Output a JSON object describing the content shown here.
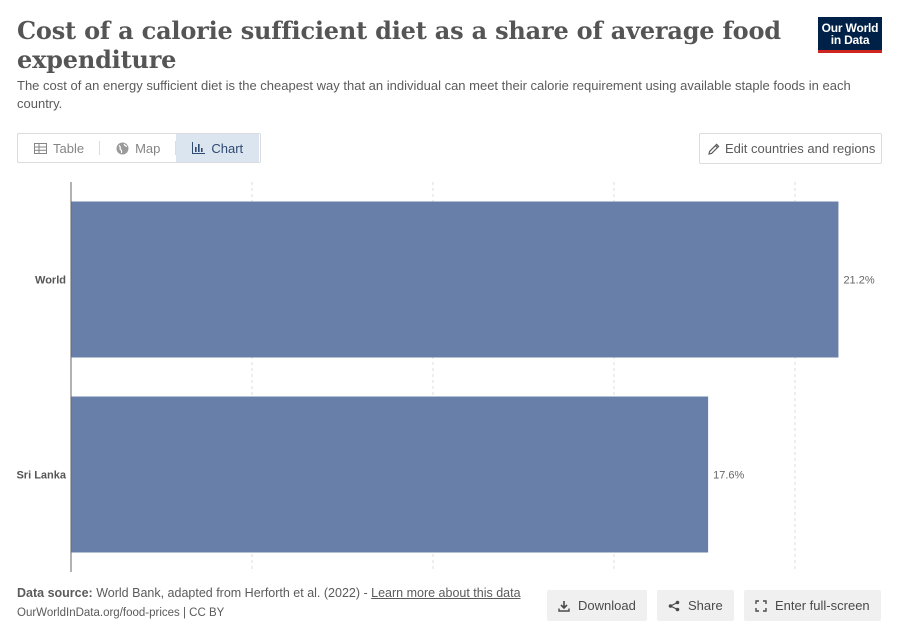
{
  "header": {
    "title": "Cost of a calorie sufficient diet as a share of average food expenditure",
    "subtitle": "The cost of an energy sufficient diet is the cheapest way that an individual can meet their calorie requirement using available staple foods in each country."
  },
  "logo": {
    "line1": "Our World",
    "line2": "in Data"
  },
  "tabs": [
    {
      "label": "Table",
      "icon": "table-icon",
      "active": false
    },
    {
      "label": "Map",
      "icon": "globe-icon",
      "active": false
    },
    {
      "label": "Chart",
      "icon": "chart-icon",
      "active": true
    }
  ],
  "edit_button": {
    "label": "Edit countries and regions",
    "icon": "pencil-icon"
  },
  "colors": {
    "bar": "#6880a9",
    "grid": "#dddddd",
    "axis": "#666666",
    "active_tab": "#dbe5f0",
    "logo_bg": "#002147",
    "logo_accent": "#ce261e"
  },
  "chart_data": {
    "type": "bar",
    "orientation": "horizontal",
    "title": "Cost of a calorie sufficient diet as a share of average food expenditure",
    "categories": [
      "World",
      "Sri Lanka"
    ],
    "values": [
      21.2,
      17.6
    ],
    "value_labels": [
      "21.2%",
      "17.6%"
    ],
    "xlim": [
      0,
      22
    ],
    "grid": true,
    "gridlines": [
      5,
      10,
      15,
      20
    ]
  },
  "footer": {
    "source_label": "Data source:",
    "source_text": "World Bank, adapted from Herforth et al. (2022) -",
    "learn_more": "Learn more about this data",
    "url": "OurWorldInData.org/food-prices | CC BY",
    "download": "Download",
    "share": "Share",
    "fullscreen": "Enter full-screen"
  }
}
